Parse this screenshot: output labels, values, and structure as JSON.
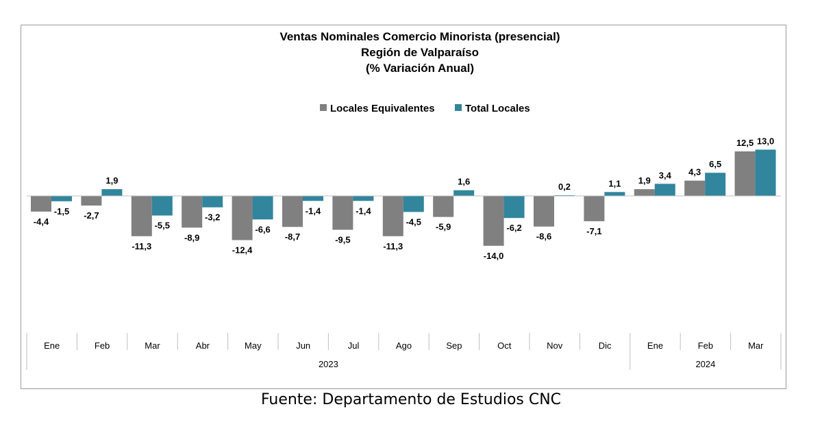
{
  "chart_data": {
    "type": "bar",
    "title_lines": [
      "Ventas Nominales Comercio Minorista (presencial)",
      "Región de Valparaíso",
      "(% Variación Anual)"
    ],
    "categories": [
      "Ene",
      "Feb",
      "Mar",
      "Abr",
      "May",
      "Jun",
      "Jul",
      "Ago",
      "Sep",
      "Oct",
      "Nov",
      "Dic",
      "Ene",
      "Feb",
      "Mar"
    ],
    "groups": [
      {
        "label": "2023",
        "count": 12
      },
      {
        "label": "2024",
        "count": 3
      }
    ],
    "series": [
      {
        "name": "Locales Equivalentes",
        "color": "#808080",
        "values": [
          -4.4,
          -2.7,
          -11.3,
          -8.9,
          -12.4,
          -8.7,
          -9.5,
          -11.3,
          -5.9,
          -14.0,
          -8.6,
          -7.1,
          1.9,
          4.3,
          12.5
        ],
        "labels": [
          "-4,4",
          "-2,7",
          "-11,3",
          "-8,9",
          "-12,4",
          "-8,7",
          "-9,5",
          "-11,3",
          "-5,9",
          "-14,0",
          "-8,6",
          "-7,1",
          "1,9",
          "4,3",
          "12,5"
        ]
      },
      {
        "name": "Total Locales",
        "color": "#31859c",
        "values": [
          -1.5,
          1.9,
          -5.5,
          -3.2,
          -6.6,
          -1.4,
          -1.4,
          -4.5,
          1.6,
          -6.2,
          0.2,
          1.1,
          3.4,
          6.5,
          13.0
        ],
        "labels": [
          "-1,5",
          "1,9",
          "-5,5",
          "-3,2",
          "-6,6",
          "-1,4",
          "-1,4",
          "-4,5",
          "1,6",
          "-6,2",
          "0,2",
          "1,1",
          "3,4",
          "6,5",
          "13,0"
        ]
      }
    ],
    "legend_position": "top-center",
    "grid": false
  },
  "source": "Fuente: Departamento de Estudios CNC"
}
